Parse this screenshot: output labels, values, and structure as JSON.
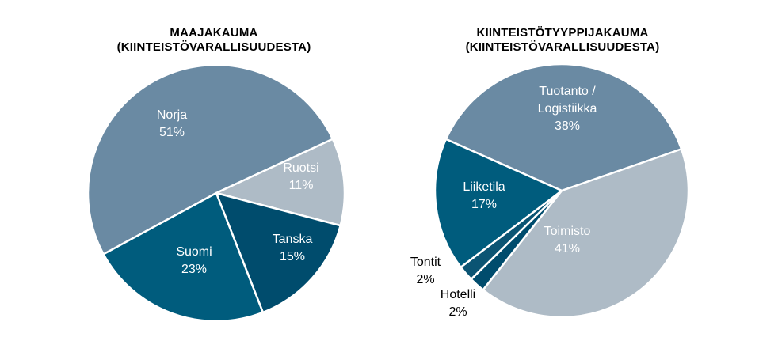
{
  "charts": [
    {
      "title_line1": "MAAJAKAUMA",
      "title_line2": "(KIINTEISTÖVARALLISUUDESTA)"
    },
    {
      "title_line1": "KIINTEISTÖTYYPPIJAKAUMA",
      "title_line2": "(KIINTEISTÖVARALLISUUDESTA)"
    }
  ],
  "chart_data": [
    {
      "type": "pie",
      "title": "MAAJAKAUMA (KIINTEISTÖVARALLISUUDESTA)",
      "slices": [
        {
          "label": "Norja",
          "value": 51,
          "display": "51%",
          "color": "#6a8aa3",
          "text_color": "#ffffff"
        },
        {
          "label": "Ruotsi",
          "value": 11,
          "display": "11%",
          "color": "#aebbc6",
          "text_color": "#ffffff"
        },
        {
          "label": "Tanska",
          "value": 15,
          "display": "15%",
          "color": "#004c6d",
          "text_color": "#ffffff"
        },
        {
          "label": "Suomi",
          "value": 23,
          "display": "23%",
          "color": "#005c7d",
          "text_color": "#ffffff"
        }
      ],
      "legend": "none"
    },
    {
      "type": "pie",
      "title": "KIINTEISTÖTYYPPIJAKAUMA (KIINTEISTÖVARALLISUUDESTA)",
      "slices": [
        {
          "label": "Tuotanto / Logistiikka",
          "value": 38,
          "display": "38%",
          "color": "#6a8aa3",
          "text_color": "#ffffff"
        },
        {
          "label": "Toimisto",
          "value": 41,
          "display": "41%",
          "color": "#aebbc6",
          "text_color": "#ffffff"
        },
        {
          "label": "Hotelli",
          "value": 2,
          "display": "2%",
          "color": "#004c6d",
          "text_color": "#000000"
        },
        {
          "label": "Tontit",
          "value": 2,
          "display": "2%",
          "color": "#0b5473",
          "text_color": "#000000"
        },
        {
          "label": "Liiketila",
          "value": 17,
          "display": "17%",
          "color": "#005c7d",
          "text_color": "#ffffff"
        }
      ],
      "legend": "none"
    }
  ]
}
